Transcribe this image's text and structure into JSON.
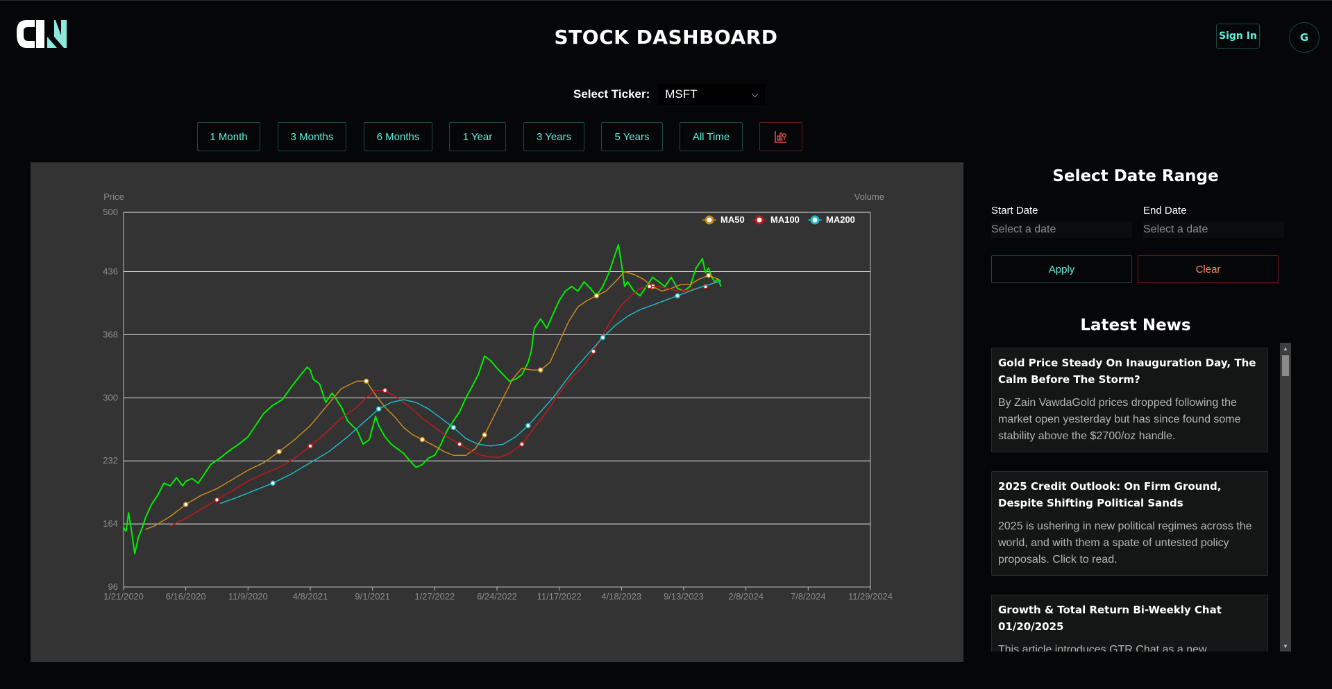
{
  "header": {
    "title": "STOCK DASHBOARD",
    "sign_in_label": "Sign In",
    "avatar_initial": "G"
  },
  "ticker": {
    "label": "Select Ticker:",
    "selected": "MSFT"
  },
  "ranges": [
    {
      "label": "1 Month"
    },
    {
      "label": "3 Months"
    },
    {
      "label": "6 Months"
    },
    {
      "label": "1 Year"
    },
    {
      "label": "3 Years"
    },
    {
      "label": "5 Years"
    },
    {
      "label": "All Time"
    }
  ],
  "chart_toggle_icon": "chart-settings-icon",
  "date_range": {
    "title": "Select Date Range",
    "start_label": "Start Date",
    "end_label": "End Date",
    "start_placeholder": "Select a date",
    "end_placeholder": "Select a date",
    "apply_label": "Apply",
    "clear_label": "Clear"
  },
  "news": {
    "title": "Latest News",
    "items": [
      {
        "title": "Gold Price Steady On Inauguration Day, The Calm Before The Storm?",
        "summary": "By Zain VawdaGold prices dropped following the market open yesterday but has since found some stability above the $2700/oz handle."
      },
      {
        "title": "2025 Credit Outlook: On Firm Ground, Despite Shifting Political Sands",
        "summary": "2025 is ushering in new political regimes across the world, and with them a spate of untested policy proposals. Click to read."
      },
      {
        "title": "Growth & Total Return Bi-Weekly Chat 01/20/2025",
        "summary": "This article introduces GTR Chat as a new contributor on Seeking Alpha and highlights the platform's forum."
      }
    ]
  },
  "colors": {
    "price": "#00ee00",
    "ma50": "#c98a1e",
    "ma100": "#c01a1a",
    "ma200": "#1fb8c4",
    "accent": "#5ff2dd",
    "danger": "#ff8870"
  },
  "chart_data": {
    "type": "line",
    "y_axis_label": "Price",
    "y2_axis_label": "Volume",
    "ylim": [
      96,
      500
    ],
    "y_ticks": [
      96,
      164,
      232,
      300,
      368,
      436,
      500
    ],
    "x_ticks": [
      "1/21/2020",
      "6/16/2020",
      "11/9/2020",
      "4/8/2021",
      "9/1/2021",
      "1/27/2022",
      "6/24/2022",
      "11/17/2022",
      "4/18/2023",
      "9/13/2023",
      "2/8/2024",
      "7/8/2024",
      "11/29/2024"
    ],
    "legend_position": "top-right",
    "grid": true,
    "series": [
      {
        "name": "Price",
        "legend": false,
        "color": "#00ee00",
        "width": 2,
        "points": [
          [
            0,
            160
          ],
          [
            0.04,
            156
          ],
          [
            0.08,
            176
          ],
          [
            0.12,
            160
          ],
          [
            0.18,
            132
          ],
          [
            0.24,
            150
          ],
          [
            0.3,
            160
          ],
          [
            0.36,
            172
          ],
          [
            0.45,
            185
          ],
          [
            0.55,
            195
          ],
          [
            0.65,
            208
          ],
          [
            0.75,
            205
          ],
          [
            0.85,
            214
          ],
          [
            0.95,
            205
          ],
          [
            1.0,
            210
          ],
          [
            1.1,
            213
          ],
          [
            1.2,
            208
          ],
          [
            1.3,
            218
          ],
          [
            1.4,
            228
          ],
          [
            1.55,
            235
          ],
          [
            1.7,
            243
          ],
          [
            1.85,
            250
          ],
          [
            2.0,
            258
          ],
          [
            2.1,
            268
          ],
          [
            2.25,
            283
          ],
          [
            2.4,
            292
          ],
          [
            2.55,
            298
          ],
          [
            2.7,
            312
          ],
          [
            2.85,
            325
          ],
          [
            2.95,
            333
          ],
          [
            3.0,
            330
          ],
          [
            3.05,
            320
          ],
          [
            3.15,
            315
          ],
          [
            3.25,
            295
          ],
          [
            3.35,
            305
          ],
          [
            3.5,
            290
          ],
          [
            3.6,
            275
          ],
          [
            3.75,
            265
          ],
          [
            3.85,
            250
          ],
          [
            3.95,
            255
          ],
          [
            4.0,
            268
          ],
          [
            4.05,
            280
          ],
          [
            4.1,
            270
          ],
          [
            4.2,
            258
          ],
          [
            4.3,
            250
          ],
          [
            4.4,
            245
          ],
          [
            4.5,
            240
          ],
          [
            4.6,
            232
          ],
          [
            4.7,
            225
          ],
          [
            4.8,
            228
          ],
          [
            4.9,
            235
          ],
          [
            5.0,
            238
          ],
          [
            5.1,
            250
          ],
          [
            5.2,
            265
          ],
          [
            5.3,
            275
          ],
          [
            5.4,
            285
          ],
          [
            5.5,
            300
          ],
          [
            5.6,
            312
          ],
          [
            5.7,
            325
          ],
          [
            5.8,
            345
          ],
          [
            5.9,
            340
          ],
          [
            6.0,
            332
          ],
          [
            6.1,
            325
          ],
          [
            6.2,
            318
          ],
          [
            6.3,
            320
          ],
          [
            6.4,
            325
          ],
          [
            6.5,
            338
          ],
          [
            6.55,
            350
          ],
          [
            6.6,
            375
          ],
          [
            6.7,
            385
          ],
          [
            6.8,
            375
          ],
          [
            6.9,
            390
          ],
          [
            7.0,
            405
          ],
          [
            7.1,
            415
          ],
          [
            7.2,
            420
          ],
          [
            7.3,
            415
          ],
          [
            7.4,
            425
          ],
          [
            7.5,
            418
          ],
          [
            7.6,
            410
          ],
          [
            7.7,
            420
          ],
          [
            7.8,
            435
          ],
          [
            7.85,
            445
          ],
          [
            7.9,
            455
          ],
          [
            7.95,
            465
          ],
          [
            8.0,
            445
          ],
          [
            8.05,
            420
          ],
          [
            8.1,
            425
          ],
          [
            8.2,
            415
          ],
          [
            8.3,
            410
          ],
          [
            8.4,
            420
          ],
          [
            8.5,
            430
          ],
          [
            8.6,
            425
          ],
          [
            8.7,
            420
          ],
          [
            8.8,
            430
          ],
          [
            8.9,
            418
          ],
          [
            9.0,
            415
          ],
          [
            9.1,
            420
          ],
          [
            9.2,
            440
          ],
          [
            9.3,
            450
          ],
          [
            9.35,
            435
          ],
          [
            9.4,
            440
          ],
          [
            9.45,
            430
          ],
          [
            9.5,
            425
          ],
          [
            9.55,
            428
          ],
          [
            9.6,
            420
          ]
        ]
      },
      {
        "name": "MA50",
        "color": "#c98a1e",
        "width": 1.5,
        "points": [
          [
            0.35,
            158
          ],
          [
            0.5,
            162
          ],
          [
            0.75,
            172
          ],
          [
            1.0,
            185
          ],
          [
            1.25,
            195
          ],
          [
            1.5,
            202
          ],
          [
            1.75,
            212
          ],
          [
            2.0,
            222
          ],
          [
            2.25,
            230
          ],
          [
            2.5,
            242
          ],
          [
            2.75,
            255
          ],
          [
            3.0,
            270
          ],
          [
            3.25,
            290
          ],
          [
            3.5,
            310
          ],
          [
            3.75,
            318
          ],
          [
            3.9,
            318
          ],
          [
            4.05,
            303
          ],
          [
            4.2,
            290
          ],
          [
            4.35,
            280
          ],
          [
            4.5,
            268
          ],
          [
            4.65,
            260
          ],
          [
            4.8,
            255
          ],
          [
            5.0,
            248
          ],
          [
            5.15,
            242
          ],
          [
            5.3,
            238
          ],
          [
            5.5,
            238
          ],
          [
            5.65,
            245
          ],
          [
            5.8,
            260
          ],
          [
            5.95,
            280
          ],
          [
            6.1,
            300
          ],
          [
            6.25,
            320
          ],
          [
            6.4,
            332
          ],
          [
            6.55,
            330
          ],
          [
            6.7,
            330
          ],
          [
            6.85,
            338
          ],
          [
            7.0,
            360
          ],
          [
            7.15,
            382
          ],
          [
            7.3,
            398
          ],
          [
            7.45,
            405
          ],
          [
            7.6,
            410
          ],
          [
            7.75,
            415
          ],
          [
            7.9,
            425
          ],
          [
            8.05,
            436
          ],
          [
            8.2,
            433
          ],
          [
            8.35,
            428
          ],
          [
            8.5,
            420
          ],
          [
            8.65,
            415
          ],
          [
            8.8,
            418
          ],
          [
            8.95,
            422
          ],
          [
            9.1,
            422
          ],
          [
            9.25,
            428
          ],
          [
            9.4,
            432
          ],
          [
            9.55,
            428
          ],
          [
            9.6,
            426
          ]
        ]
      },
      {
        "name": "MA100",
        "color": "#c01a1a",
        "width": 1.5,
        "points": [
          [
            0.75,
            162
          ],
          [
            1.0,
            170
          ],
          [
            1.25,
            180
          ],
          [
            1.5,
            190
          ],
          [
            1.75,
            200
          ],
          [
            2.0,
            210
          ],
          [
            2.25,
            218
          ],
          [
            2.5,
            225
          ],
          [
            2.75,
            235
          ],
          [
            3.0,
            248
          ],
          [
            3.25,
            262
          ],
          [
            3.5,
            278
          ],
          [
            3.75,
            290
          ],
          [
            3.9,
            300
          ],
          [
            4.05,
            308
          ],
          [
            4.2,
            308
          ],
          [
            4.4,
            300
          ],
          [
            4.6,
            290
          ],
          [
            4.8,
            278
          ],
          [
            5.0,
            268
          ],
          [
            5.2,
            258
          ],
          [
            5.4,
            250
          ],
          [
            5.6,
            242
          ],
          [
            5.75,
            238
          ],
          [
            5.9,
            236
          ],
          [
            6.05,
            236
          ],
          [
            6.2,
            240
          ],
          [
            6.4,
            250
          ],
          [
            6.6,
            268
          ],
          [
            6.8,
            285
          ],
          [
            7.0,
            305
          ],
          [
            7.2,
            322
          ],
          [
            7.4,
            335
          ],
          [
            7.55,
            350
          ],
          [
            7.7,
            368
          ],
          [
            7.85,
            385
          ],
          [
            8.0,
            400
          ],
          [
            8.15,
            410
          ],
          [
            8.3,
            418
          ],
          [
            8.45,
            420
          ],
          [
            8.6,
            420
          ],
          [
            8.75,
            418
          ],
          [
            8.9,
            415
          ],
          [
            9.05,
            416
          ],
          [
            9.2,
            418
          ],
          [
            9.35,
            420
          ],
          [
            9.5,
            424
          ],
          [
            9.6,
            426
          ]
        ]
      },
      {
        "name": "MA200",
        "color": "#1fb8c4",
        "width": 1.5,
        "points": [
          [
            1.55,
            186
          ],
          [
            1.8,
            192
          ],
          [
            2.1,
            200
          ],
          [
            2.4,
            208
          ],
          [
            2.7,
            218
          ],
          [
            3.0,
            230
          ],
          [
            3.3,
            242
          ],
          [
            3.6,
            258
          ],
          [
            3.9,
            276
          ],
          [
            4.1,
            288
          ],
          [
            4.3,
            295
          ],
          [
            4.5,
            298
          ],
          [
            4.7,
            295
          ],
          [
            4.9,
            288
          ],
          [
            5.1,
            278
          ],
          [
            5.3,
            268
          ],
          [
            5.5,
            256
          ],
          [
            5.7,
            250
          ],
          [
            5.9,
            248
          ],
          [
            6.1,
            250
          ],
          [
            6.3,
            258
          ],
          [
            6.5,
            270
          ],
          [
            6.7,
            285
          ],
          [
            6.9,
            300
          ],
          [
            7.1,
            318
          ],
          [
            7.3,
            335
          ],
          [
            7.5,
            350
          ],
          [
            7.7,
            365
          ],
          [
            7.9,
            378
          ],
          [
            8.1,
            388
          ],
          [
            8.3,
            395
          ],
          [
            8.5,
            400
          ],
          [
            8.7,
            405
          ],
          [
            8.9,
            410
          ],
          [
            9.1,
            415
          ],
          [
            9.3,
            420
          ],
          [
            9.5,
            424
          ],
          [
            9.6,
            426
          ]
        ]
      }
    ]
  }
}
